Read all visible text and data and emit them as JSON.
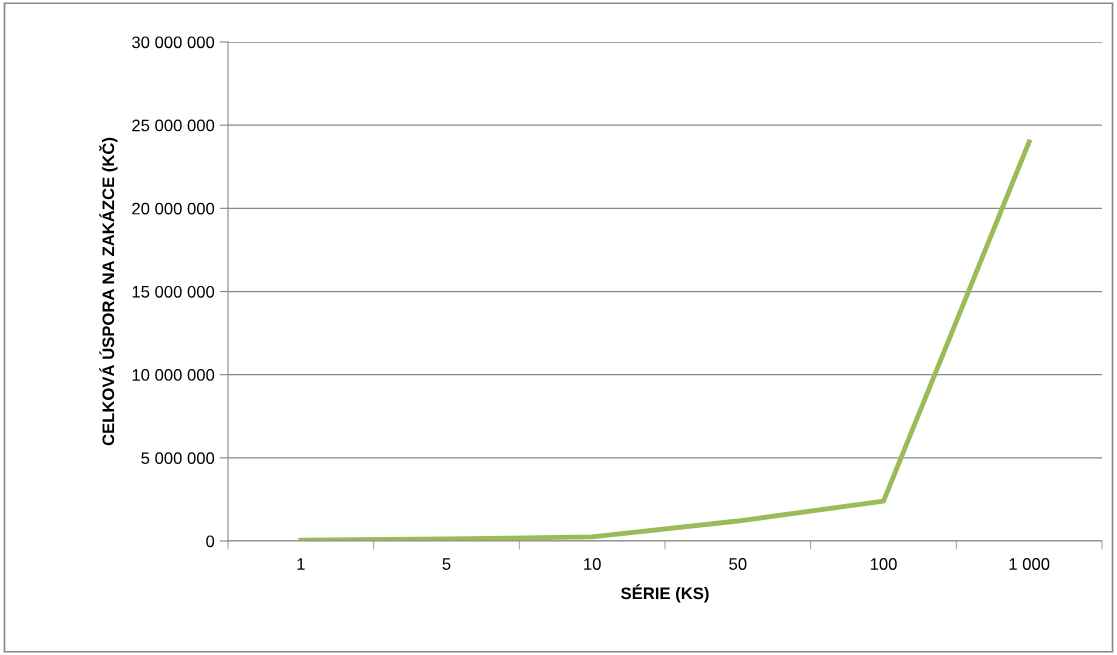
{
  "chart_data": {
    "type": "line",
    "xlabel": "SÉRIE (KS)",
    "ylabel": "CELKOVÁ ÚSPORA NA ZAKÁZCE (KČ)",
    "categories": [
      "1",
      "5",
      "10",
      "50",
      "100",
      "1 000"
    ],
    "series": [
      {
        "color": "#9bbb59",
        "values": [
          50000,
          120000,
          250000,
          1200000,
          2400000,
          24000000
        ]
      }
    ],
    "ylim": [
      0,
      30000000
    ],
    "yticks": [
      0,
      {
        "value": 5000000,
        "label": "5 000 000"
      },
      {
        "value": 10000000,
        "label": "10 000 000"
      },
      {
        "value": 15000000,
        "label": "15 000 000"
      },
      {
        "value": 20000000,
        "label": "20 000 000"
      },
      {
        "value": 25000000,
        "label": "25 000 000"
      },
      {
        "value": 30000000,
        "label": "30 000 000"
      }
    ],
    "grid": "y",
    "marker": "none",
    "line_style": "solid",
    "legend": false
  }
}
